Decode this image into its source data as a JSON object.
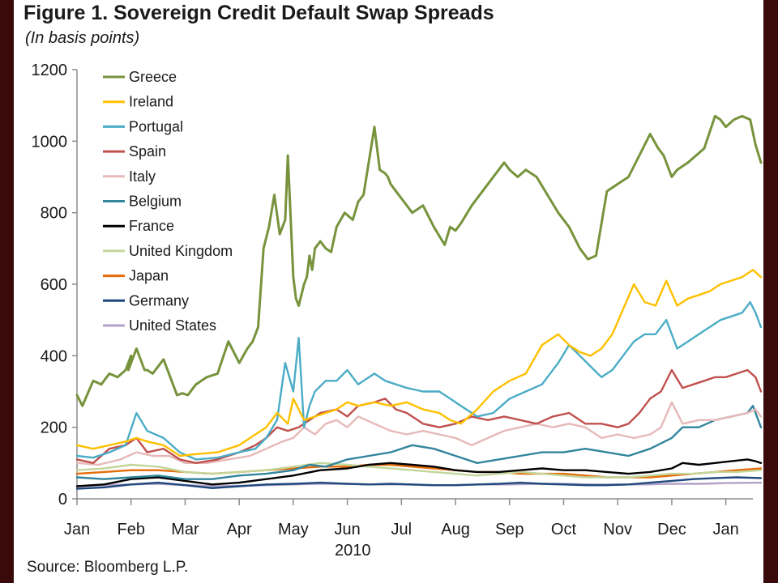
{
  "title": "Figure 1. Sovereign Credit Default Swap Spreads",
  "subtitle": "(In basis points)",
  "source": "Source: Bloomberg L.P.",
  "colors": {
    "background": "#3a0a0a",
    "plot": "#ffffff",
    "axis": "#8c8c8c"
  },
  "chart_data": {
    "type": "line",
    "title": "Figure 1. Sovereign Credit Default Swap Spreads",
    "subtitle": "(In basis points)",
    "xlabel": "2010",
    "ylabel": "",
    "ylim": [
      0,
      1200
    ],
    "yticks": [
      0,
      200,
      400,
      600,
      800,
      1000,
      1200
    ],
    "xlim": [
      0,
      12.5
    ],
    "x_ticks": [
      "Jan",
      "Feb",
      "Mar",
      "Apr",
      "May",
      "Jun",
      "Jul",
      "Aug",
      "Sep",
      "Oct",
      "Nov",
      "Dec",
      "Jan"
    ],
    "x_year_label": "2010",
    "grid": false,
    "legend_position": "top-left",
    "x_unit": "months since start of Jan 2010",
    "series": [
      {
        "name": "Greece",
        "color": "#77933c",
        "x": [
          0,
          0.1,
          0.3,
          0.45,
          0.6,
          0.75,
          0.9,
          1.0,
          0.95,
          1.1,
          1.25,
          1.3,
          1.4,
          1.6,
          1.75,
          1.85,
          1.95,
          2.05,
          2.2,
          2.4,
          2.6,
          2.8,
          3.0,
          3.15,
          3.25,
          3.35,
          3.45,
          3.55,
          3.65,
          3.75,
          3.85,
          3.9,
          4.0,
          4.05,
          4.1,
          4.2,
          4.25,
          4.3,
          4.35,
          4.4,
          4.5,
          4.6,
          4.7,
          4.8,
          4.95,
          5.1,
          5.2,
          5.3,
          5.5,
          5.6,
          5.7,
          5.75,
          5.8,
          5.9,
          6.0,
          6.2,
          6.4,
          6.6,
          6.8,
          6.9,
          7.0,
          7.1,
          7.3,
          7.5,
          7.7,
          7.9,
          8.0,
          8.15,
          8.3,
          8.5,
          8.7,
          8.9,
          9.1,
          9.3,
          9.45,
          9.6,
          9.8,
          9.9,
          10.0,
          10.2,
          10.4,
          10.6,
          10.75,
          10.85,
          11.0,
          11.1,
          11.3,
          11.45,
          11.6,
          11.8,
          11.9,
          12.0,
          12.15,
          12.3,
          12.45,
          12.55,
          12.65
        ],
        "y": [
          290,
          260,
          330,
          320,
          350,
          340,
          360,
          400,
          360,
          420,
          360,
          360,
          350,
          390,
          330,
          290,
          295,
          290,
          320,
          340,
          350,
          440,
          380,
          420,
          440,
          480,
          700,
          760,
          850,
          740,
          780,
          960,
          620,
          560,
          540,
          600,
          620,
          680,
          640,
          700,
          720,
          700,
          690,
          760,
          800,
          780,
          830,
          850,
          1040,
          920,
          910,
          900,
          880,
          860,
          840,
          800,
          820,
          760,
          710,
          760,
          750,
          770,
          820,
          860,
          900,
          940,
          920,
          900,
          920,
          900,
          850,
          800,
          760,
          700,
          670,
          680,
          860,
          870,
          880,
          900,
          960,
          1020,
          980,
          960,
          900,
          920,
          940,
          960,
          980,
          1070,
          1060,
          1040,
          1060,
          1070,
          1060,
          990,
          940
        ]
      },
      {
        "name": "Ireland",
        "color": "#ffc000",
        "x": [
          0,
          0.3,
          0.6,
          0.9,
          1.1,
          1.3,
          1.6,
          1.9,
          2.2,
          2.6,
          3.0,
          3.3,
          3.5,
          3.7,
          3.9,
          4.0,
          4.2,
          4.4,
          4.6,
          4.8,
          5.0,
          5.2,
          5.5,
          5.8,
          6.1,
          6.4,
          6.7,
          6.9,
          7.1,
          7.4,
          7.7,
          8.0,
          8.3,
          8.6,
          8.9,
          9.1,
          9.3,
          9.5,
          9.7,
          9.9,
          10.1,
          10.3,
          10.5,
          10.7,
          10.9,
          11.1,
          11.3,
          11.5,
          11.7,
          11.9,
          12.1,
          12.3,
          12.5,
          12.65
        ],
        "y": [
          150,
          140,
          150,
          160,
          170,
          160,
          150,
          120,
          125,
          130,
          150,
          180,
          200,
          240,
          210,
          280,
          220,
          230,
          240,
          250,
          270,
          260,
          270,
          260,
          270,
          250,
          240,
          220,
          210,
          250,
          300,
          330,
          350,
          430,
          460,
          430,
          410,
          400,
          420,
          460,
          530,
          600,
          550,
          540,
          610,
          540,
          560,
          570,
          580,
          600,
          610,
          620,
          640,
          620
        ]
      },
      {
        "name": "Portugal",
        "color": "#4bacc6",
        "x": [
          0,
          0.3,
          0.6,
          0.9,
          1.1,
          1.3,
          1.6,
          1.9,
          2.2,
          2.6,
          3.0,
          3.3,
          3.5,
          3.7,
          3.85,
          4.0,
          4.1,
          4.2,
          4.3,
          4.4,
          4.6,
          4.8,
          5.0,
          5.2,
          5.5,
          5.7,
          5.9,
          6.1,
          6.4,
          6.7,
          6.9,
          7.1,
          7.4,
          7.7,
          8.0,
          8.3,
          8.6,
          8.9,
          9.1,
          9.3,
          9.5,
          9.7,
          9.9,
          10.1,
          10.3,
          10.5,
          10.7,
          10.9,
          11.1,
          11.3,
          11.5,
          11.7,
          11.9,
          12.1,
          12.3,
          12.45,
          12.55,
          12.65
        ],
        "y": [
          120,
          115,
          130,
          150,
          240,
          190,
          170,
          130,
          110,
          115,
          130,
          140,
          170,
          220,
          380,
          300,
          450,
          200,
          260,
          300,
          330,
          330,
          360,
          320,
          350,
          330,
          320,
          310,
          300,
          300,
          280,
          260,
          230,
          240,
          280,
          300,
          320,
          380,
          430,
          400,
          370,
          340,
          360,
          400,
          440,
          460,
          460,
          500,
          420,
          440,
          460,
          480,
          500,
          510,
          520,
          550,
          520,
          480
        ]
      },
      {
        "name": "Spain",
        "color": "#c0504d",
        "x": [
          0,
          0.3,
          0.6,
          0.9,
          1.1,
          1.3,
          1.6,
          1.9,
          2.2,
          2.6,
          3.0,
          3.3,
          3.5,
          3.7,
          3.9,
          4.1,
          4.3,
          4.5,
          4.8,
          5.0,
          5.2,
          5.5,
          5.7,
          5.9,
          6.1,
          6.4,
          6.7,
          7.0,
          7.3,
          7.6,
          7.9,
          8.2,
          8.5,
          8.8,
          9.1,
          9.4,
          9.7,
          10.0,
          10.2,
          10.4,
          10.6,
          10.8,
          11.0,
          11.2,
          11.4,
          11.6,
          11.8,
          12.0,
          12.2,
          12.4,
          12.55,
          12.65
        ],
        "y": [
          110,
          100,
          140,
          150,
          170,
          130,
          140,
          110,
          100,
          110,
          130,
          150,
          170,
          200,
          190,
          200,
          220,
          240,
          250,
          230,
          260,
          270,
          280,
          250,
          240,
          210,
          200,
          210,
          230,
          220,
          230,
          220,
          210,
          230,
          240,
          210,
          210,
          200,
          210,
          240,
          280,
          300,
          360,
          310,
          320,
          330,
          340,
          340,
          350,
          360,
          340,
          300
        ]
      },
      {
        "name": "Italy",
        "color": "#e6b9b8",
        "x": [
          0,
          0.4,
          0.8,
          1.1,
          1.4,
          1.7,
          2.0,
          2.4,
          2.8,
          3.2,
          3.5,
          3.8,
          4.0,
          4.2,
          4.4,
          4.6,
          4.8,
          5.0,
          5.2,
          5.5,
          5.8,
          6.1,
          6.4,
          6.7,
          7.0,
          7.3,
          7.6,
          7.9,
          8.2,
          8.5,
          8.8,
          9.1,
          9.4,
          9.7,
          10.0,
          10.3,
          10.6,
          10.8,
          11.0,
          11.2,
          11.5,
          11.8,
          12.1,
          12.4,
          12.55,
          12.65
        ],
        "y": [
          100,
          95,
          110,
          130,
          120,
          120,
          100,
          100,
          110,
          120,
          140,
          160,
          170,
          200,
          180,
          210,
          220,
          200,
          230,
          210,
          190,
          180,
          190,
          180,
          170,
          150,
          170,
          190,
          200,
          210,
          200,
          210,
          200,
          170,
          180,
          170,
          180,
          200,
          270,
          210,
          220,
          220,
          230,
          240,
          250,
          230
        ]
      },
      {
        "name": "Belgium",
        "color": "#31859c",
        "x": [
          0,
          0.5,
          1.0,
          1.5,
          2.0,
          2.5,
          3.0,
          3.5,
          4.0,
          4.3,
          4.6,
          5.0,
          5.4,
          5.8,
          6.2,
          6.6,
          7.0,
          7.4,
          7.8,
          8.2,
          8.6,
          9.0,
          9.4,
          9.8,
          10.2,
          10.6,
          11.0,
          11.2,
          11.5,
          11.8,
          12.1,
          12.4,
          12.5,
          12.65
        ],
        "y": [
          60,
          55,
          60,
          65,
          55,
          55,
          65,
          70,
          80,
          95,
          90,
          110,
          120,
          130,
          150,
          140,
          120,
          100,
          110,
          120,
          130,
          130,
          140,
          130,
          120,
          140,
          170,
          200,
          200,
          220,
          230,
          240,
          260,
          200
        ]
      },
      {
        "name": "France",
        "color": "#000000",
        "x": [
          0,
          0.5,
          1.0,
          1.5,
          2.0,
          2.5,
          3.0,
          3.5,
          4.0,
          4.5,
          5.0,
          5.4,
          5.8,
          6.2,
          6.6,
          7.0,
          7.4,
          7.8,
          8.2,
          8.6,
          9.0,
          9.4,
          9.8,
          10.2,
          10.6,
          11.0,
          11.2,
          11.5,
          11.8,
          12.1,
          12.4,
          12.55,
          12.65
        ],
        "y": [
          35,
          40,
          55,
          60,
          50,
          40,
          45,
          55,
          65,
          80,
          85,
          95,
          100,
          95,
          90,
          80,
          75,
          75,
          80,
          85,
          80,
          80,
          75,
          70,
          75,
          85,
          100,
          95,
          100,
          105,
          110,
          105,
          100
        ]
      },
      {
        "name": "United Kingdom",
        "color": "#c3d69b",
        "x": [
          0,
          0.5,
          1.0,
          1.5,
          2.0,
          2.5,
          3.0,
          3.5,
          4.0,
          4.5,
          5.0,
          5.4,
          5.8,
          6.2,
          6.6,
          7.0,
          7.4,
          7.8,
          8.2,
          8.6,
          9.0,
          9.4,
          9.8,
          10.2,
          10.6,
          11.0,
          11.4,
          11.8,
          12.2,
          12.65
        ],
        "y": [
          80,
          85,
          95,
          90,
          75,
          70,
          75,
          80,
          90,
          100,
          95,
          90,
          85,
          80,
          75,
          70,
          65,
          70,
          75,
          70,
          65,
          60,
          60,
          60,
          65,
          70,
          70,
          75,
          75,
          80
        ]
      },
      {
        "name": "Japan",
        "color": "#e46c0a",
        "x": [
          0,
          0.5,
          1.0,
          1.5,
          2.0,
          2.5,
          3.0,
          3.5,
          4.0,
          4.5,
          5.0,
          5.4,
          5.8,
          6.2,
          6.6,
          7.0,
          7.4,
          7.8,
          8.2,
          8.6,
          9.0,
          9.4,
          9.8,
          10.2,
          10.6,
          11.0,
          11.4,
          11.8,
          12.2,
          12.65
        ],
        "y": [
          70,
          75,
          80,
          80,
          75,
          70,
          75,
          80,
          85,
          90,
          90,
          95,
          95,
          90,
          85,
          80,
          75,
          75,
          70,
          70,
          70,
          65,
          60,
          60,
          60,
          65,
          70,
          75,
          80,
          85
        ]
      },
      {
        "name": "Germany",
        "color": "#1f497d",
        "x": [
          0,
          0.5,
          1.0,
          1.5,
          2.0,
          2.5,
          3.0,
          3.5,
          4.0,
          4.5,
          5.0,
          5.4,
          5.8,
          6.2,
          6.6,
          7.0,
          7.4,
          7.8,
          8.2,
          8.6,
          9.0,
          9.4,
          9.8,
          10.2,
          10.6,
          11.0,
          11.4,
          11.8,
          12.2,
          12.65
        ],
        "y": [
          28,
          32,
          40,
          45,
          38,
          30,
          35,
          40,
          42,
          45,
          42,
          40,
          42,
          40,
          38,
          38,
          40,
          42,
          45,
          42,
          40,
          38,
          38,
          40,
          45,
          50,
          55,
          58,
          60,
          58
        ]
      },
      {
        "name": "United States",
        "color": "#b3a2c7",
        "x": [
          0,
          0.5,
          1.0,
          1.5,
          2.0,
          2.5,
          3.0,
          3.5,
          4.0,
          4.5,
          5.0,
          5.5,
          6.0,
          6.5,
          7.0,
          7.5,
          8.0,
          8.5,
          9.0,
          9.5,
          10.0,
          10.5,
          11.0,
          11.5,
          12.0,
          12.65
        ],
        "y": [
          35,
          38,
          40,
          42,
          38,
          35,
          36,
          38,
          40,
          42,
          42,
          40,
          40,
          38,
          38,
          40,
          40,
          42,
          42,
          40,
          40,
          40,
          42,
          42,
          44,
          45
        ]
      }
    ]
  }
}
